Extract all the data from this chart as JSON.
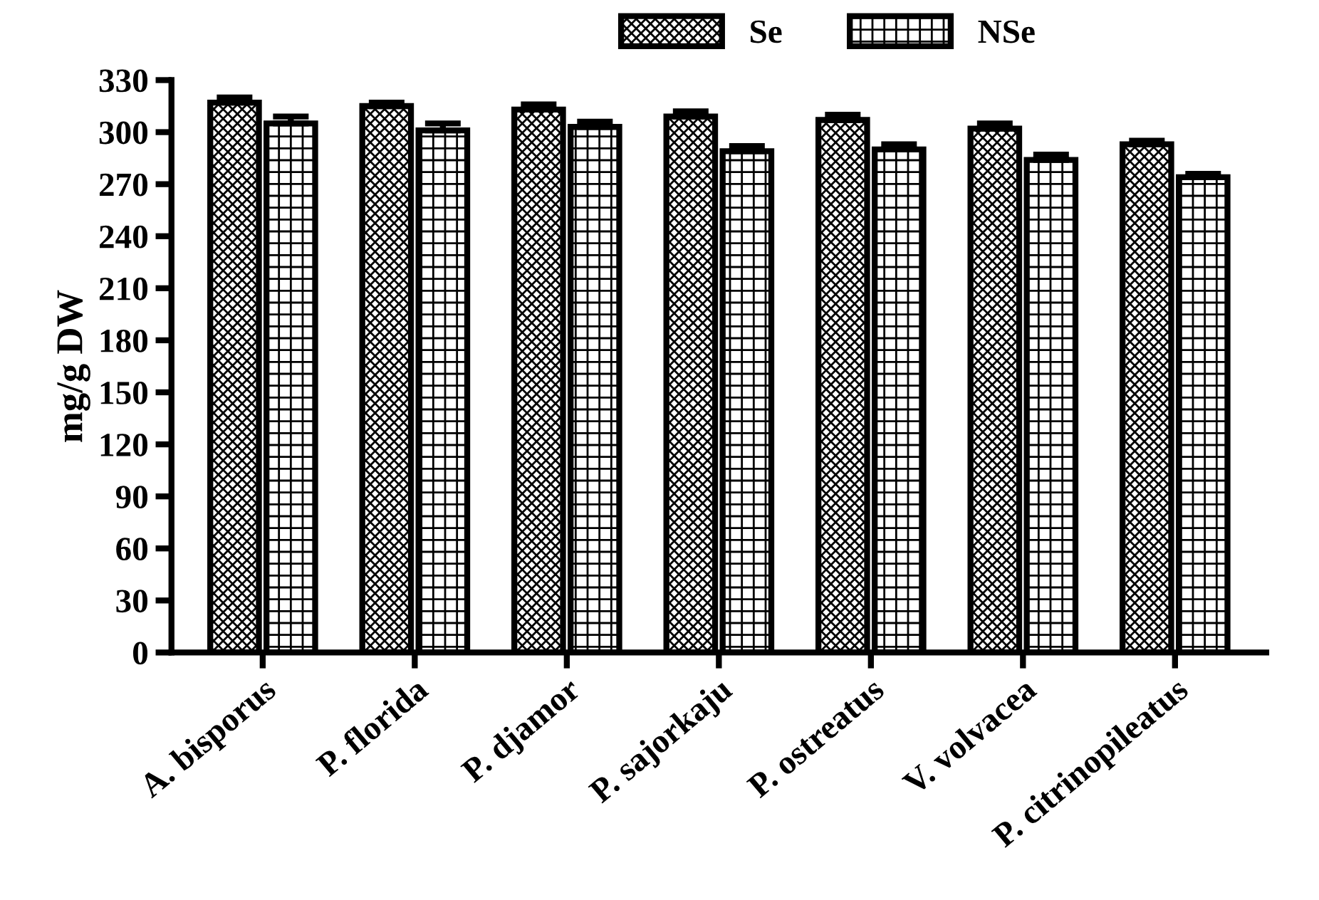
{
  "chart_data": {
    "type": "bar",
    "ylabel": "mg/g DW",
    "categories": [
      "A. bisporus",
      "P. florida",
      "P. djamor",
      "P. sajorkaju",
      "P. ostreatus",
      "V. volvacea",
      "P. citrinopileatus"
    ],
    "series": [
      {
        "name": "Se",
        "color": "#000000",
        "values": [
          317,
          315,
          313,
          309,
          307,
          302,
          293
        ],
        "errors": [
          3,
          2,
          3,
          3,
          3,
          3,
          2
        ]
      },
      {
        "name": "NSe",
        "color": "#000000",
        "values": [
          305,
          301,
          303,
          289,
          290,
          284,
          274
        ],
        "errors": [
          4,
          4,
          3,
          3,
          3,
          3,
          2
        ]
      }
    ],
    "ylim": [
      0,
      330
    ],
    "yticks": [
      0,
      30,
      60,
      90,
      120,
      150,
      180,
      210,
      240,
      270,
      300,
      330
    ],
    "grid": false,
    "legend": "top"
  }
}
